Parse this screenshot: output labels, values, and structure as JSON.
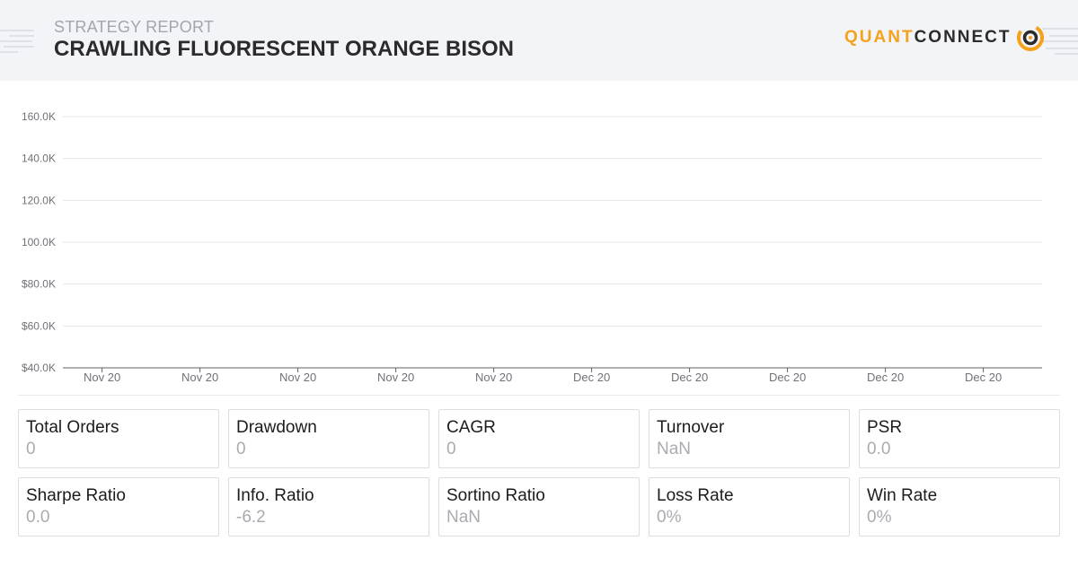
{
  "header": {
    "subtitle": "STRATEGY REPORT",
    "title": "CRAWLING FLUORESCENT ORANGE BISON",
    "logo_quant": "QUANT",
    "logo_connect": "CONNECT",
    "accent_color": "#f5a11c"
  },
  "chart_data": {
    "type": "line",
    "title": "",
    "xlabel": "",
    "ylabel": "",
    "x_tick_labels": [
      "Nov 20",
      "Nov 20",
      "Nov 20",
      "Nov 20",
      "Nov 20",
      "Dec 20",
      "Dec 20",
      "Dec 20",
      "Dec 20",
      "Dec 20"
    ],
    "y_tick_labels": [
      "160.0K",
      "140.0K",
      "120.0K",
      "100.0K",
      "$80.0K",
      "$60.0K",
      "$40.0K"
    ],
    "ylim": [
      40000,
      160000
    ],
    "grid": true,
    "series": []
  },
  "stats": [
    {
      "label": "Total Orders",
      "value": "0"
    },
    {
      "label": "Drawdown",
      "value": "0"
    },
    {
      "label": "CAGR",
      "value": "0"
    },
    {
      "label": "Turnover",
      "value": "NaN"
    },
    {
      "label": "PSR",
      "value": "0.0"
    },
    {
      "label": "Sharpe Ratio",
      "value": "0.0"
    },
    {
      "label": "Info. Ratio",
      "value": "-6.2"
    },
    {
      "label": "Sortino Ratio",
      "value": "NaN"
    },
    {
      "label": "Loss Rate",
      "value": "0%"
    },
    {
      "label": "Win Rate",
      "value": "0%"
    }
  ]
}
